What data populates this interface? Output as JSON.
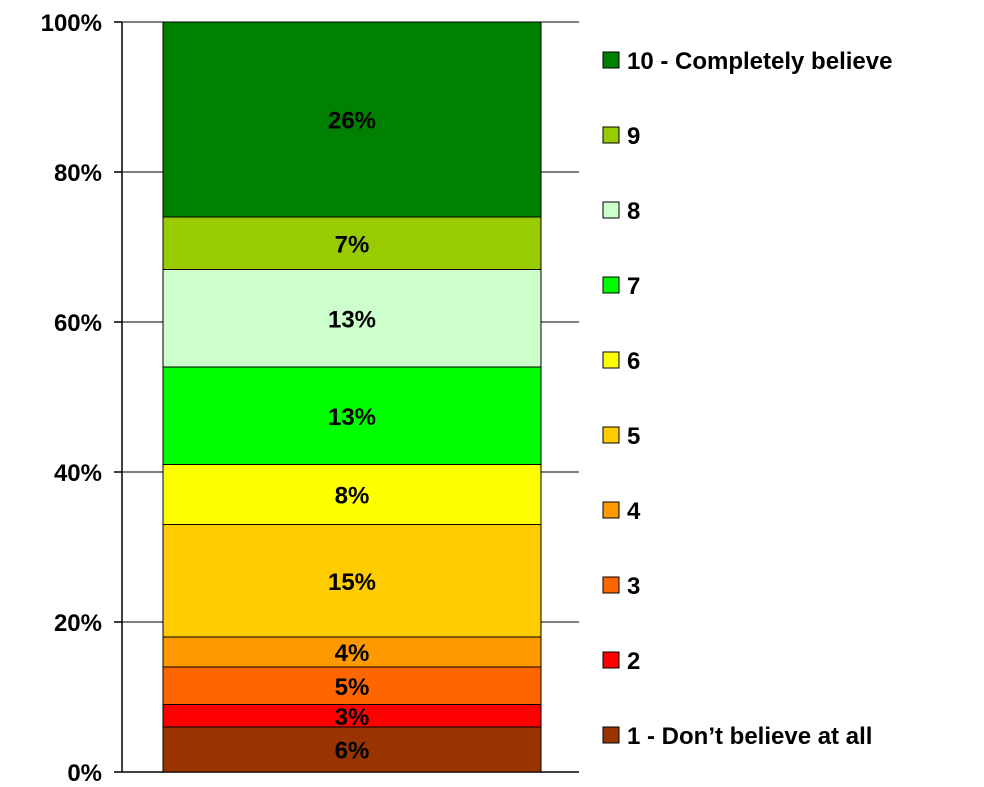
{
  "chart_data": {
    "type": "bar",
    "stacked": true,
    "percent_stacked": true,
    "categories": [
      ""
    ],
    "ylim": [
      0,
      100
    ],
    "y_tick_labels": [
      "0%",
      "20%",
      "40%",
      "60%",
      "80%",
      "100%"
    ],
    "y_tick_values": [
      0,
      20,
      40,
      60,
      80,
      100
    ],
    "grid": false,
    "legend_position": "right",
    "series": [
      {
        "name": "1 - Don’t believe at all",
        "values": [
          6
        ],
        "label": "6%",
        "color": "#993300"
      },
      {
        "name": "2",
        "values": [
          3
        ],
        "label": "3%",
        "color": "#ff0000"
      },
      {
        "name": "3",
        "values": [
          5
        ],
        "label": "5%",
        "color": "#ff6600"
      },
      {
        "name": "4",
        "values": [
          4
        ],
        "label": "4%",
        "color": "#ff9900"
      },
      {
        "name": "5",
        "values": [
          15
        ],
        "label": "15%",
        "color": "#ffcc00"
      },
      {
        "name": "6",
        "values": [
          8
        ],
        "label": "8%",
        "color": "#ffff00"
      },
      {
        "name": "7",
        "values": [
          13
        ],
        "label": "13%",
        "color": "#00ff00"
      },
      {
        "name": "8",
        "values": [
          13
        ],
        "label": "13%",
        "color": "#ccffcc"
      },
      {
        "name": "9",
        "values": [
          7
        ],
        "label": "7%",
        "color": "#99cc00"
      },
      {
        "name": "10 - Completely believe",
        "values": [
          26
        ],
        "label": "26%",
        "color": "#008000"
      }
    ]
  }
}
